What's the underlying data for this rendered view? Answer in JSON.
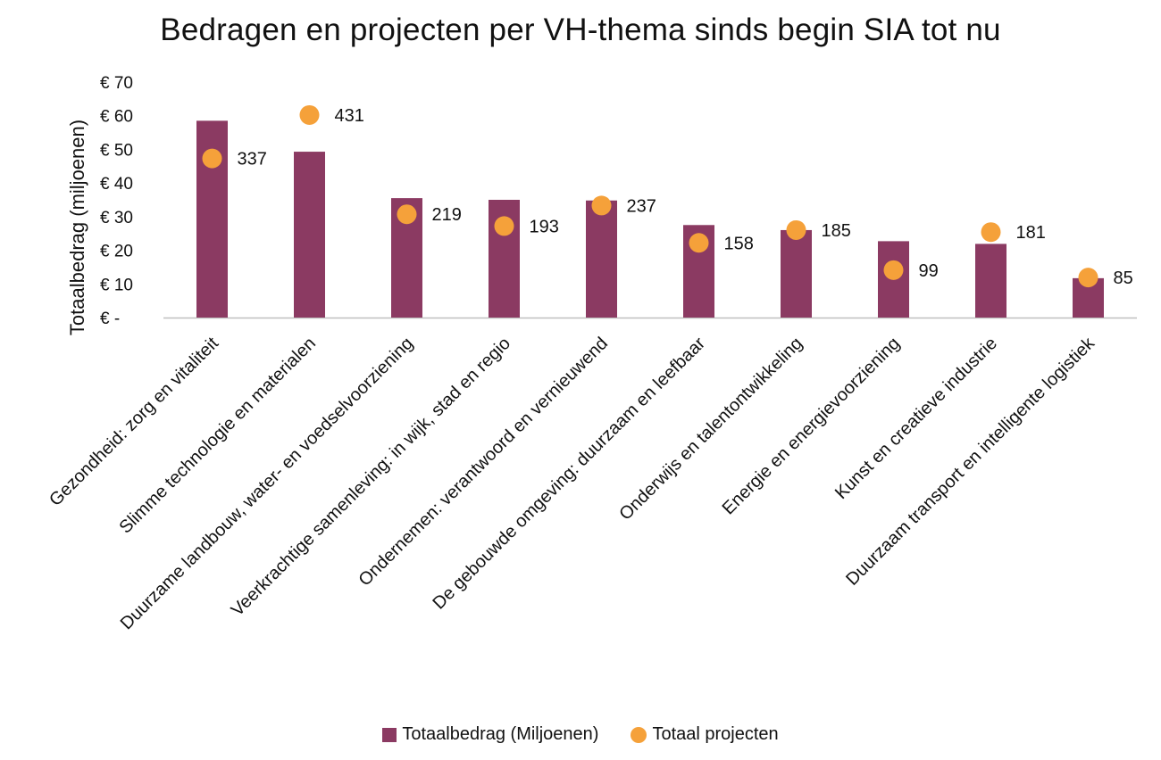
{
  "chart_data": {
    "type": "bar",
    "title": "Bedragen en projecten per VH-thema sinds begin SIA tot nu",
    "ylabel": "Totaalbedrag (miljoenen)",
    "xlabel": "",
    "ylim": [
      0,
      70
    ],
    "yticks": [
      0,
      10,
      20,
      30,
      40,
      50,
      60,
      70
    ],
    "ytick_labels": [
      "€ -",
      "€ 10",
      "€ 20",
      "€ 30",
      "€ 40",
      "€ 50",
      "€ 60",
      "€ 70"
    ],
    "grid": false,
    "legend_position": "bottom",
    "categories": [
      "Gezondheid: zorg en vitaliteit",
      "Slimme technologie en materialen",
      "Duurzame landbouw, water- en voedselvoorziening",
      "Veerkrachtige samenleving: in wijk, stad en regio",
      "Ondernemen: verantwoord en vernieuwend",
      "De gebouwde omgeving: duurzaam en leefbaar",
      "Onderwijs en talentontwikkeling",
      "Energie en energievoorziening",
      "Kunst en creatieve industrie",
      "Duurzaam transport en intelligente logistiek"
    ],
    "series": [
      {
        "name": "Totaalbedrag (Miljoenen)",
        "kind": "bar",
        "color": "#8B3A62",
        "values": [
          58.5,
          49.3,
          35.5,
          35.0,
          34.8,
          27.5,
          26.0,
          22.7,
          21.9,
          11.7
        ]
      },
      {
        "name": "Totaal projecten",
        "kind": "scatter",
        "color": "#F5A13A",
        "values": [
          337,
          431,
          219,
          193,
          237,
          158,
          185,
          99,
          181,
          85
        ],
        "plotted_level": [
          47.3,
          60.2,
          30.7,
          27.2,
          33.3,
          22.2,
          26.0,
          14.1,
          25.4,
          11.9
        ],
        "labels": [
          "337",
          "431",
          "219",
          "193",
          "237",
          "158",
          "185",
          "99",
          "181",
          "85"
        ]
      }
    ]
  }
}
